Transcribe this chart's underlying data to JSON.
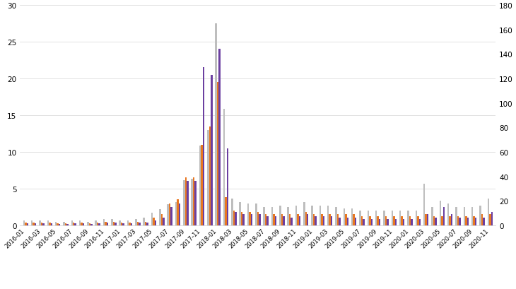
{
  "non_eu_color": "#E87722",
  "eu_color": "#6B3FA0",
  "total_color": "#BEBEBE",
  "left_ylim": [
    0,
    30
  ],
  "right_ylim": [
    0,
    180
  ],
  "left_yticks": [
    0,
    5,
    10,
    15,
    20,
    25,
    30
  ],
  "right_yticks": [
    0,
    20,
    40,
    60,
    80,
    100,
    120,
    140,
    160,
    180
  ],
  "non_eu": [
    0.4,
    0.4,
    0.4,
    0.4,
    0.3,
    0.3,
    0.4,
    0.4,
    0.3,
    0.4,
    0.5,
    0.5,
    0.4,
    0.4,
    0.5,
    0.5,
    1.0,
    1.5,
    3.0,
    3.5,
    6.5,
    6.5,
    11.0,
    13.5,
    19.5,
    3.8,
    2.0,
    1.8,
    1.8,
    1.8,
    1.5,
    1.5,
    1.5,
    1.5,
    1.5,
    1.8,
    1.5,
    1.5,
    1.5,
    1.5,
    1.5,
    1.5,
    1.2,
    1.2,
    1.2,
    1.2,
    1.2,
    1.2,
    1.2,
    1.2,
    1.5,
    1.2,
    1.2,
    1.2,
    1.2,
    1.2,
    1.2,
    1.5,
    1.5
  ],
  "eu": [
    0.3,
    0.3,
    0.3,
    0.3,
    0.2,
    0.2,
    0.3,
    0.3,
    0.2,
    0.3,
    0.4,
    0.4,
    0.3,
    0.3,
    0.4,
    0.4,
    0.7,
    1.0,
    2.5,
    3.0,
    6.0,
    6.0,
    21.5,
    20.5,
    24.0,
    10.5,
    1.8,
    1.5,
    1.5,
    1.5,
    1.2,
    1.2,
    1.2,
    1.0,
    1.2,
    1.5,
    1.2,
    1.2,
    1.2,
    1.0,
    1.0,
    1.0,
    0.8,
    0.8,
    0.8,
    0.8,
    0.8,
    0.8,
    0.8,
    0.8,
    1.5,
    1.0,
    2.5,
    1.5,
    1.0,
    1.0,
    1.0,
    1.0,
    1.8
  ],
  "total_rhs": [
    4,
    4,
    4,
    4,
    3,
    3,
    4,
    4,
    3,
    4,
    5,
    5,
    4,
    4,
    5,
    6,
    10,
    13,
    17,
    19,
    37,
    38,
    65,
    78,
    165,
    95,
    22,
    19,
    18,
    18,
    15,
    15,
    16,
    15,
    16,
    19,
    16,
    16,
    16,
    15,
    14,
    14,
    12,
    12,
    12,
    12,
    12,
    12,
    12,
    12,
    34,
    15,
    20,
    18,
    15,
    15,
    15,
    16,
    22
  ]
}
